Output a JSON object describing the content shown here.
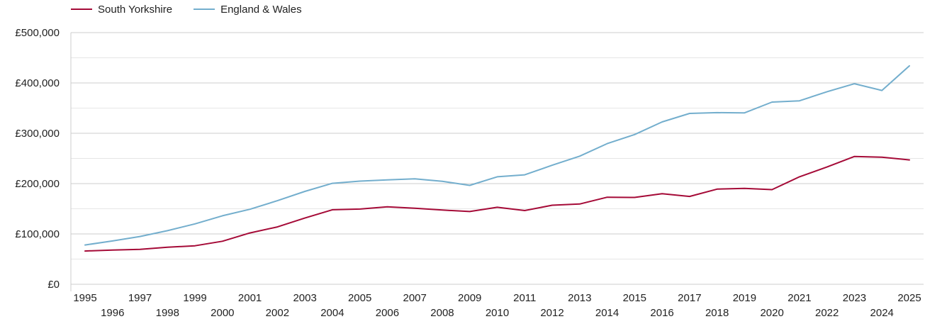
{
  "chart_data": {
    "type": "line",
    "title": "",
    "xlabel": "",
    "ylabel": "",
    "x": [
      1995,
      1996,
      1997,
      1998,
      1999,
      2000,
      2001,
      2002,
      2003,
      2004,
      2005,
      2006,
      2007,
      2008,
      2009,
      2010,
      2011,
      2012,
      2013,
      2014,
      2015,
      2016,
      2017,
      2018,
      2019,
      2020,
      2021,
      2022,
      2023,
      2024,
      2025
    ],
    "ylim": [
      0,
      500000
    ],
    "yticks": [
      0,
      100000,
      200000,
      300000,
      400000,
      500000
    ],
    "ytick_labels": [
      "£0",
      "£100,000",
      "£200,000",
      "£300,000",
      "£400,000",
      "£500,000"
    ],
    "grid": true,
    "legend_position": "top-left",
    "series": [
      {
        "name": "South Yorkshire",
        "color": "#a50a37",
        "values": [
          66000,
          68000,
          69500,
          73500,
          76500,
          85500,
          102000,
          114000,
          131500,
          148000,
          149500,
          154000,
          151000,
          147500,
          144500,
          153000,
          146500,
          157000,
          159500,
          173000,
          172500,
          180000,
          174500,
          189000,
          190500,
          188000,
          213500,
          233000,
          254000,
          252500,
          247000
        ]
      },
      {
        "name": "England & Wales",
        "color": "#73aecd",
        "values": [
          78000,
          86000,
          95000,
          106500,
          120000,
          136000,
          149000,
          166000,
          184500,
          200500,
          205000,
          207500,
          209500,
          204500,
          196500,
          213500,
          217500,
          236500,
          254500,
          279500,
          297500,
          322500,
          339500,
          341000,
          340500,
          362000,
          364500,
          382500,
          398500,
          385000,
          434000
        ]
      }
    ]
  }
}
